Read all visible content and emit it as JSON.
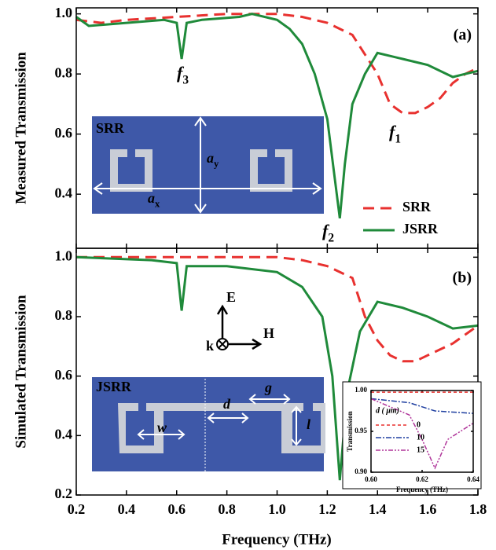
{
  "chart_data": [
    {
      "type": "line",
      "panel_label": "(a)",
      "ylabel": "Measured Transmission",
      "ylim": [
        0.22,
        1.02
      ],
      "yticks": [
        0.4,
        0.6,
        0.8,
        {
          "value": 1.0,
          "label": "1.0"
        }
      ],
      "xlim": [
        0.2,
        1.8
      ],
      "series": [
        {
          "name": "SRR",
          "color": "#e8312f",
          "dashed": true,
          "x": [
            0.2,
            0.3,
            0.4,
            0.6,
            0.8,
            1.0,
            1.1,
            1.2,
            1.3,
            1.4,
            1.45,
            1.5,
            1.55,
            1.6,
            1.65,
            1.7,
            1.75,
            1.8
          ],
          "values": [
            0.98,
            0.97,
            0.98,
            0.99,
            1.0,
            1.0,
            0.99,
            0.97,
            0.93,
            0.8,
            0.7,
            0.67,
            0.67,
            0.69,
            0.72,
            0.77,
            0.8,
            0.82
          ]
        },
        {
          "name": "JSRR",
          "color": "#1f8a3a",
          "dashed": false,
          "x": [
            0.2,
            0.25,
            0.4,
            0.55,
            0.6,
            0.62,
            0.64,
            0.7,
            0.85,
            0.9,
            1.0,
            1.05,
            1.1,
            1.15,
            1.2,
            1.23,
            1.25,
            1.27,
            1.3,
            1.35,
            1.4,
            1.45,
            1.5,
            1.6,
            1.7,
            1.75,
            1.8
          ],
          "values": [
            0.99,
            0.96,
            0.97,
            0.98,
            0.97,
            0.85,
            0.97,
            0.98,
            0.99,
            1.0,
            0.98,
            0.95,
            0.9,
            0.8,
            0.65,
            0.45,
            0.32,
            0.5,
            0.7,
            0.8,
            0.87,
            0.86,
            0.85,
            0.83,
            0.79,
            0.8,
            0.81
          ]
        }
      ],
      "annotations": [
        {
          "label": "f",
          "subscript": "3"
        },
        {
          "label": "f",
          "subscript": "2"
        },
        {
          "label": "f",
          "subscript": "1"
        }
      ]
    },
    {
      "type": "line",
      "panel_label": "(b)",
      "ylabel": "Simulated Transmission",
      "xlabel": "Frequency (THz)",
      "ylim": [
        0.2,
        1.03
      ],
      "yticks": [
        0.2,
        0.4,
        0.6,
        0.8,
        {
          "value": 1.0,
          "label": "1.0"
        }
      ],
      "xlim": [
        0.2,
        1.8
      ],
      "xticks": [
        0.2,
        0.4,
        0.6,
        0.8,
        {
          "value": 1.0,
          "label": "1.0"
        },
        1.2,
        1.4,
        1.6,
        1.8
      ],
      "series": [
        {
          "color": "#e8312f",
          "dashed": true,
          "x": [
            0.2,
            0.6,
            1.0,
            1.1,
            1.2,
            1.3,
            1.35,
            1.4,
            1.45,
            1.5,
            1.55,
            1.6,
            1.7,
            1.8
          ],
          "values": [
            1.0,
            1.0,
            1.0,
            0.99,
            0.97,
            0.93,
            0.8,
            0.72,
            0.67,
            0.65,
            0.65,
            0.67,
            0.71,
            0.77
          ]
        },
        {
          "color": "#1f8a3a",
          "dashed": false,
          "x": [
            0.2,
            0.5,
            0.6,
            0.62,
            0.64,
            0.8,
            1.0,
            1.1,
            1.18,
            1.22,
            1.25,
            1.28,
            1.33,
            1.4,
            1.5,
            1.6,
            1.7,
            1.8
          ],
          "values": [
            1.0,
            0.99,
            0.98,
            0.82,
            0.97,
            0.97,
            0.95,
            0.9,
            0.8,
            0.6,
            0.25,
            0.55,
            0.75,
            0.85,
            0.83,
            0.8,
            0.76,
            0.77
          ]
        }
      ]
    },
    {
      "type": "line",
      "ylabel": "Transmission",
      "xlabel": "Frequency (THz)",
      "legend_title": "d ( μm)",
      "xlim": [
        0.6,
        0.64
      ],
      "xticks": [
        {
          "value": 0.6,
          "label": "0.60"
        },
        {
          "value": 0.62,
          "label": "0.62"
        },
        {
          "value": 0.64,
          "label": "0.64"
        }
      ],
      "ylim": [
        0.9,
        1.0
      ],
      "yticks": [
        {
          "value": 0.9,
          "label": "0.90"
        },
        {
          "value": 0.95,
          "label": "0.95"
        },
        {
          "value": 1.0,
          "label": "1.00"
        }
      ],
      "series": [
        {
          "name": "0",
          "color": "#e8312f",
          "dash": "4,3",
          "x": [
            0.6,
            0.64
          ],
          "values": [
            0.998,
            0.998
          ]
        },
        {
          "name": "10",
          "color": "#1f3fa0",
          "dash": "7,2,2,2",
          "x": [
            0.6,
            0.615,
            0.625,
            0.64
          ],
          "values": [
            0.99,
            0.985,
            0.975,
            0.972
          ]
        },
        {
          "name": "15",
          "color": "#b0359a",
          "dash": "6,2,2,2,2,2",
          "x": [
            0.6,
            0.615,
            0.62,
            0.625,
            0.63,
            0.64
          ],
          "values": [
            0.99,
            0.97,
            0.94,
            0.905,
            0.94,
            0.96
          ]
        }
      ]
    }
  ],
  "photos": {
    "srr": {
      "title": "SRR",
      "ay": {
        "label": "a",
        "subscript": "y"
      },
      "ax": {
        "label": "a",
        "subscript": "x"
      }
    },
    "jsrr": {
      "title": "JSRR",
      "d": "d",
      "g": "g",
      "l": "l",
      "w": "w"
    },
    "axes": {
      "e": "E",
      "h": "H",
      "k": "k"
    }
  }
}
